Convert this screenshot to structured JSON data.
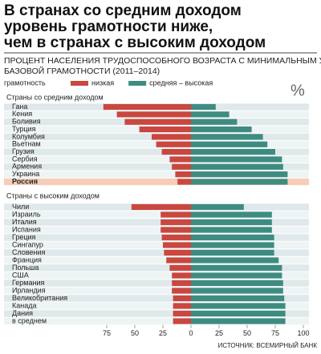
{
  "title_lines": [
    "В странах со средним доходом",
    "уровень грамотности ниже,",
    "чем в странах с высоким доходом"
  ],
  "subtitle_lines": [
    "ПРОЦЕНТ НАСЕЛЕНИЯ ТРУДОСПОСОБНОГО ВОЗРАСТА С МИНИМАЛЬНЫМ УРОВНЕМ",
    "БАЗОВОЙ ГРАМОТНОСТИ (2011–2014)"
  ],
  "legend_title": "грамотность",
  "unit": "%",
  "source": "ИСТОЧНИК: ВСЕМИРНЫЙ БАНК",
  "chart_data": [
    {
      "type": "bar",
      "title": "Страны со средним доходом",
      "categories": [
        "Гана",
        "Кения",
        "Боливия",
        "Турция",
        "Колумбия",
        "Вьетнам",
        "Грузия",
        "Сербия",
        "Армения",
        "Украина",
        "Россия"
      ],
      "series": [
        {
          "name": "низкая",
          "color": "#c9473f",
          "values": [
            78,
            66,
            59,
            46,
            35,
            31,
            26,
            19,
            17,
            14,
            12
          ]
        },
        {
          "name": "средняя – высокая",
          "color": "#3e8c81",
          "values": [
            22,
            34,
            41,
            54,
            64,
            68,
            75,
            81,
            82,
            86,
            86
          ]
        }
      ],
      "highlight": 10,
      "highlight_color": "#f6cdb9",
      "xlim": [
        -90,
        105
      ]
    },
    {
      "type": "bar",
      "title": "Страны с высоким доходом",
      "categories": [
        "Чили",
        "Израиль",
        "Италия",
        "Испания",
        "Греция",
        "Сингапур",
        "Словения",
        "Франция",
        "Польша",
        "США",
        "Германия",
        "Ирландия",
        "Великобритания",
        "Канада",
        "Дания",
        "в среднем"
      ],
      "series": [
        {
          "color": "#c9473f",
          "values": [
            53,
            27,
            27,
            27,
            26,
            25,
            24,
            22,
            19,
            17,
            17,
            17,
            16,
            16,
            16,
            16
          ]
        },
        {
          "color": "#3e8c81",
          "values": [
            47,
            72,
            72,
            72,
            74,
            74,
            74,
            78,
            81,
            81,
            82,
            82,
            83,
            84,
            84,
            84
          ]
        }
      ],
      "xlim": [
        -90,
        105
      ],
      "xticks": [
        {
          "value": -75,
          "label": "75"
        },
        {
          "value": -50,
          "label": "50"
        },
        {
          "value": -25,
          "label": "25"
        },
        0,
        25,
        50,
        75,
        100
      ]
    }
  ]
}
